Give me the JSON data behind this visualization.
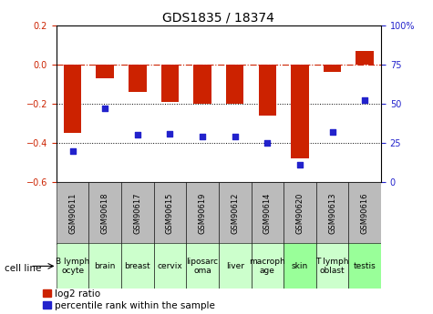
{
  "title": "GDS1835 / 18374",
  "samples": [
    "GSM90611",
    "GSM90618",
    "GSM90617",
    "GSM90615",
    "GSM90619",
    "GSM90612",
    "GSM90614",
    "GSM90620",
    "GSM90613",
    "GSM90616"
  ],
  "cell_lines": [
    "B lymph\nocyte",
    "brain",
    "breast",
    "cervix",
    "liposarc\noma",
    "liver",
    "macroph\nage",
    "skin",
    "T lymph\noblast",
    "testis"
  ],
  "cell_colors": [
    "#ccffcc",
    "#ccffcc",
    "#ccffcc",
    "#ccffcc",
    "#ccffcc",
    "#ccffcc",
    "#ccffcc",
    "#99ff99",
    "#ccffcc",
    "#99ff99"
  ],
  "log2_ratio": [
    -0.35,
    -0.07,
    -0.14,
    -0.19,
    -0.2,
    -0.2,
    -0.26,
    -0.48,
    -0.04,
    0.07
  ],
  "percentile_rank": [
    20,
    47,
    30,
    31,
    29,
    29,
    25,
    11,
    32,
    52
  ],
  "ylim_left": [
    -0.6,
    0.2
  ],
  "ylim_right": [
    0,
    100
  ],
  "yticks_left": [
    -0.6,
    -0.4,
    -0.2,
    0.0,
    0.2
  ],
  "yticks_right": [
    0,
    25,
    50,
    75,
    100
  ],
  "bar_color": "#cc2200",
  "dot_color": "#2222cc",
  "hline_color": "#cc2200",
  "dotted_lines": [
    -0.2,
    -0.4
  ],
  "dotted_color": "#000000",
  "bg_color": "#ffffff",
  "sample_bg": "#bbbbbb",
  "bar_width": 0.55,
  "dot_size": 22,
  "title_fontsize": 10,
  "tick_fontsize": 7,
  "legend_fontsize": 7.5,
  "cell_label_fontsize": 6.5,
  "sample_label_fontsize": 6
}
